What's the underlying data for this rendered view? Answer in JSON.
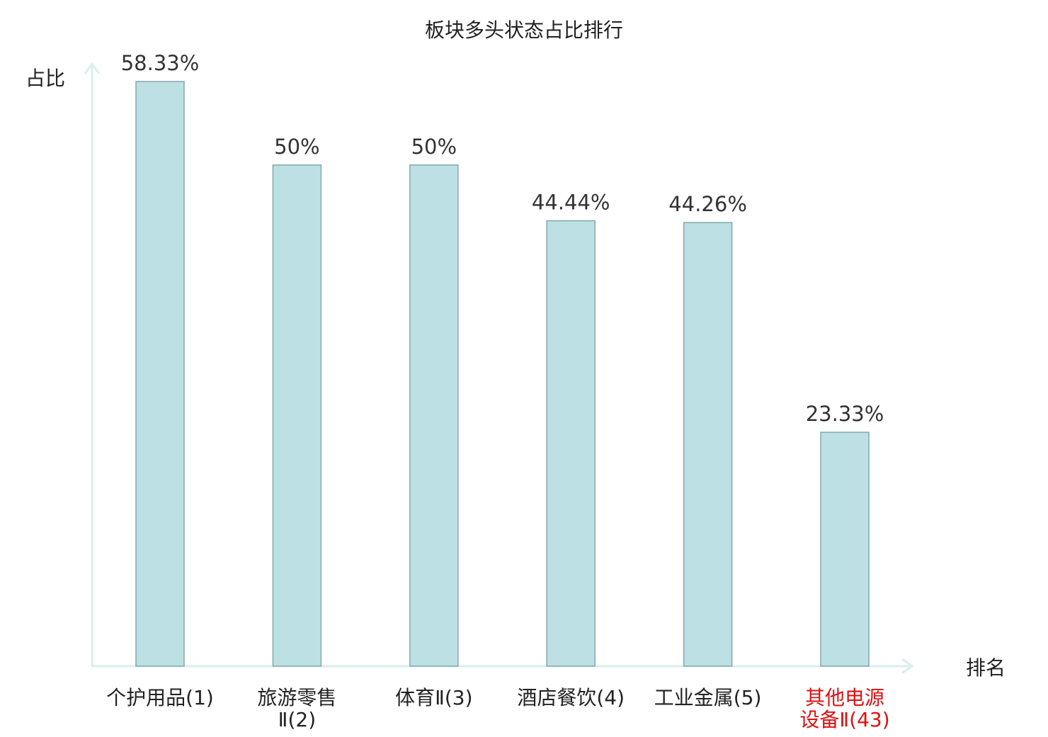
{
  "chart_data": {
    "type": "bar",
    "title": "板块多头状态占比排行",
    "ylabel": "占比",
    "xlabel": "排名",
    "categories": [
      [
        "个护用品(1)"
      ],
      [
        "旅游零售",
        "Ⅱ(2)"
      ],
      [
        "体育Ⅱ(3)"
      ],
      [
        "酒店餐饮(4)"
      ],
      [
        "工业金属(5)"
      ],
      [
        "其他电源",
        "设备Ⅱ(43)"
      ]
    ],
    "values": [
      58.33,
      50,
      50,
      44.44,
      44.26,
      23.33
    ],
    "value_labels": [
      "58.33%",
      "50%",
      "50%",
      "44.44%",
      "44.26%",
      "23.33%"
    ],
    "highlight_index": 5,
    "ylim": [
      0,
      58.33
    ],
    "grid": false,
    "colors": {
      "bar_fill": "#bce0e3",
      "bar_stroke": "#85a8ac",
      "axis": "#d9efec",
      "category_text": "#222222",
      "highlight_text": "#dd1111"
    }
  }
}
